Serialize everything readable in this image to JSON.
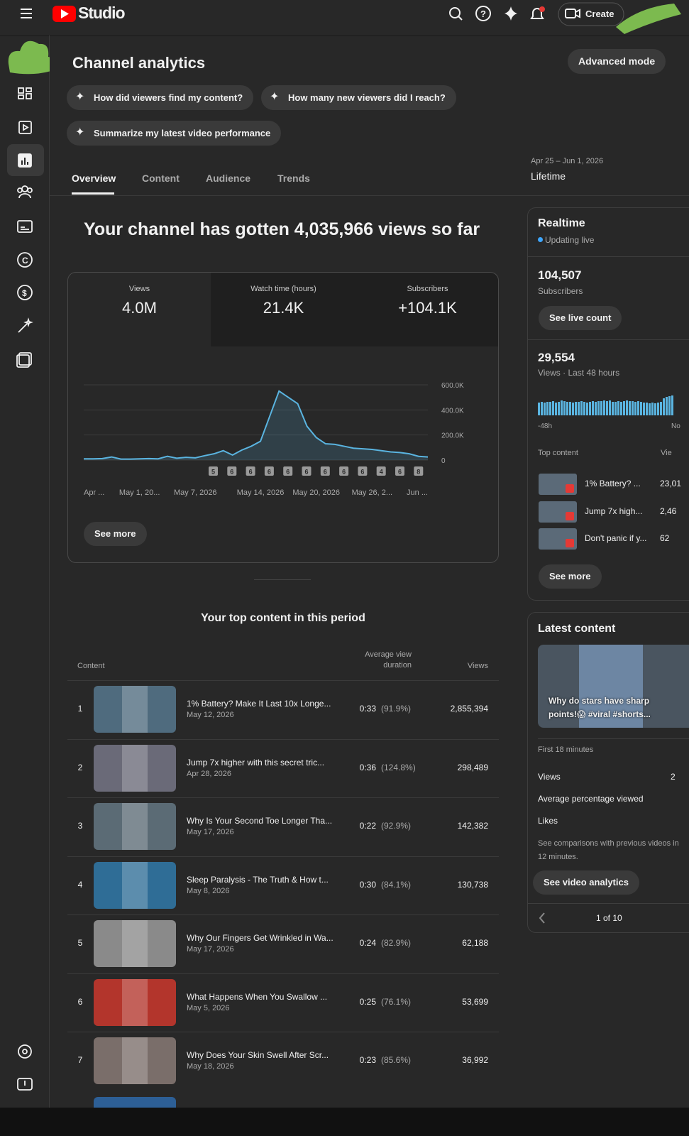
{
  "header": {
    "brand": "Studio",
    "create": "Create"
  },
  "page": {
    "title": "Channel analytics",
    "mode_button": "Advanced mode"
  },
  "prompts": [
    "How did viewers find my content?",
    "How many new viewers did I reach?",
    "Summarize my latest video performance"
  ],
  "tabs": [
    "Overview",
    "Content",
    "Audience",
    "Trends"
  ],
  "date_range": {
    "range": "Apr 25 – Jun 1, 2026",
    "period": "Lifetime"
  },
  "headline": "Your channel has gotten 4,035,966 views so far",
  "metrics": [
    {
      "label": "Views",
      "value": "4.0M"
    },
    {
      "label": "Watch time (hours)",
      "value": "21.4K"
    },
    {
      "label": "Subscribers",
      "value": "+104.1K"
    }
  ],
  "chart_data": [
    {
      "type": "line",
      "categories": [
        "Apr ...",
        null,
        null,
        null,
        null,
        null,
        "May 1, 20...",
        null,
        null,
        null,
        null,
        null,
        "May 7, 2026",
        null,
        null,
        null,
        null,
        null,
        null,
        "May 14, 2026",
        null,
        null,
        null,
        null,
        null,
        "May 20, 2026",
        null,
        null,
        null,
        null,
        null,
        "May 26, 2...",
        null,
        null,
        null,
        null,
        null,
        "Jun ..."
      ],
      "values": [
        10000,
        10000,
        12000,
        25000,
        8000,
        8000,
        10000,
        12000,
        10000,
        30000,
        15000,
        22000,
        18000,
        35000,
        50000,
        75000,
        40000,
        80000,
        110000,
        150000,
        350000,
        550000,
        500000,
        450000,
        270000,
        180000,
        130000,
        125000,
        110000,
        95000,
        90000,
        85000,
        75000,
        65000,
        60000,
        50000,
        30000,
        25000
      ],
      "color": "#5ab4e0",
      "ylim": [
        0,
        600000
      ],
      "yticks": [
        {
          "value": 0,
          "label": "0"
        },
        {
          "value": 200000,
          "label": "200.0K"
        },
        {
          "value": 400000,
          "label": "400.0K"
        },
        {
          "value": 600000,
          "label": "600.0K"
        }
      ],
      "grid": true,
      "markers": [
        "5",
        "6",
        "6",
        "6",
        "6",
        "6",
        "6",
        "6",
        "6",
        "4",
        "6",
        "8"
      ]
    },
    {
      "type": "bar",
      "categories": [
        "-48h",
        null,
        null,
        null,
        null,
        null,
        null,
        null,
        null,
        null,
        null,
        null,
        null,
        null,
        null,
        null,
        null,
        null,
        null,
        null,
        null,
        null,
        null,
        null,
        null,
        null,
        null,
        null,
        null,
        null,
        null,
        null,
        null,
        null,
        null,
        null,
        null,
        null,
        null,
        null,
        null,
        null,
        null,
        null,
        null,
        null,
        null,
        "No"
      ],
      "values": [
        18,
        19,
        18,
        19,
        19,
        20,
        18,
        19,
        21,
        20,
        19,
        19,
        18,
        19,
        19,
        20,
        19,
        18,
        19,
        20,
        19,
        20,
        20,
        21,
        20,
        21,
        19,
        19,
        20,
        19,
        20,
        21,
        20,
        20,
        19,
        20,
        19,
        18,
        18,
        17,
        18,
        17,
        18,
        19,
        24,
        26,
        27,
        28
      ],
      "color": "#5ab4e0",
      "ylim": [
        0,
        30
      ]
    }
  ],
  "see_more": "See more",
  "top_content": {
    "title": "Your top content in this period",
    "columns": [
      "Content",
      "Average view duration",
      "Views"
    ],
    "rows": [
      {
        "rank": 1,
        "title": "1% Battery? Make It Last 10x Longe...",
        "date": "May 12, 2026",
        "duration": "0:33",
        "percent": "(91.9%)",
        "views": "2,855,394"
      },
      {
        "rank": 2,
        "title": "Jump 7x higher with this secret tric...",
        "date": "Apr 28, 2026",
        "duration": "0:36",
        "percent": "(124.8%)",
        "views": "298,489"
      },
      {
        "rank": 3,
        "title": "Why Is Your Second Toe Longer Tha...",
        "date": "May 17, 2026",
        "duration": "0:22",
        "percent": "(92.9%)",
        "views": "142,382"
      },
      {
        "rank": 4,
        "title": "Sleep Paralysis - The Truth & How t...",
        "date": "May 8, 2026",
        "duration": "0:30",
        "percent": "(84.1%)",
        "views": "130,738"
      },
      {
        "rank": 5,
        "title": "Why Our Fingers Get Wrinkled in Wa...",
        "date": "May 17, 2026",
        "duration": "0:24",
        "percent": "(82.9%)",
        "views": "62,188"
      },
      {
        "rank": 6,
        "title": "What Happens When You Swallow ...",
        "date": "May 5, 2026",
        "duration": "0:25",
        "percent": "(76.1%)",
        "views": "53,699"
      },
      {
        "rank": 7,
        "title": "Why Does Your Skin Swell After Scr...",
        "date": "May 18, 2026",
        "duration": "0:23",
        "percent": "(85.6%)",
        "views": "36,992"
      }
    ]
  },
  "realtime": {
    "title": "Realtime",
    "status": "Updating live",
    "subscribers": "104,507",
    "subscribers_label": "Subscribers",
    "live_button": "See live count",
    "views": "29,554",
    "views_label": "Views · Last 48 hours",
    "top_label": "Top content",
    "views_column": "Vie",
    "items": [
      {
        "title": "1% Battery? ...",
        "views": "23,01"
      },
      {
        "title": "Jump 7x high...",
        "views": "2,46"
      },
      {
        "title": "Don't panic if y...",
        "views": "62"
      }
    ],
    "see_more": "See more"
  },
  "latest": {
    "title": "Latest content",
    "video_title": "Why do stars have sharp points!😱 #viral #shorts...",
    "window": "First 18 minutes",
    "stats": [
      {
        "label": "Views",
        "value": "2"
      },
      {
        "label": "Average percentage viewed"
      },
      {
        "label": "Likes"
      }
    ],
    "note": "See comparisons with previous videos in 12 minutes.",
    "button": "See video analytics",
    "pager": "1 of 10"
  }
}
